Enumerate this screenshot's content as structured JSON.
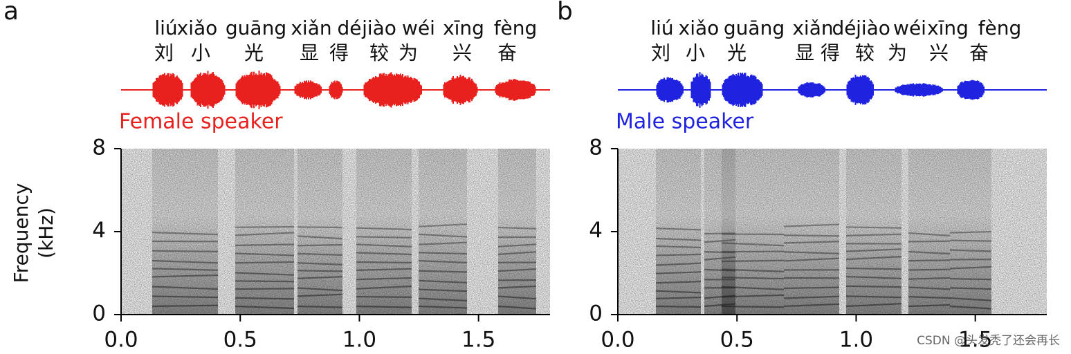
{
  "chart_data": [
    {
      "type": "spectrogram",
      "panel_label": "a",
      "speaker": "Female speaker",
      "color": "#e8201e",
      "pinyin": [
        "liú",
        "xiǎo",
        "guāng",
        "xiǎn",
        "dé",
        "jiào",
        "wéi",
        "xīng",
        "fèng"
      ],
      "characters": [
        "刘",
        "小",
        "光",
        "显",
        "得",
        "较",
        "为",
        "兴",
        "奋"
      ],
      "ylabel": [
        "Frequency",
        "(kHz)"
      ],
      "xlim": [
        0,
        1.8
      ],
      "ylim": [
        0,
        8
      ],
      "xticks": [
        {
          "value": 0,
          "label": "0.0"
        },
        {
          "value": 0.5,
          "label": "0.5"
        },
        {
          "value": 1,
          "label": "1.0"
        },
        {
          "value": 1.5,
          "label": "1.5"
        }
      ],
      "yticks": [
        0,
        4,
        8
      ]
    },
    {
      "type": "spectrogram",
      "panel_label": "b",
      "speaker": "Male speaker",
      "color": "#1f23e0",
      "pinyin": [
        "liú",
        "xiǎo",
        "guāng",
        "xiǎn",
        "dé",
        "jiào",
        "wéi",
        "xīng",
        "fèng"
      ],
      "characters": [
        "刘",
        "小",
        "光",
        "显",
        "得",
        "较",
        "为",
        "兴",
        "奋"
      ],
      "xlim": [
        0,
        1.8
      ],
      "ylim": [
        0,
        8
      ],
      "xticks": [
        {
          "value": 0,
          "label": "0.0"
        },
        {
          "value": 0.5,
          "label": "0.5"
        },
        {
          "value": 1,
          "label": "1.0"
        },
        {
          "value": 1.5,
          "label": "1.5"
        }
      ],
      "yticks": [
        0,
        4,
        8
      ]
    }
  ],
  "watermark": "CSDN @头发秃了还会再长"
}
